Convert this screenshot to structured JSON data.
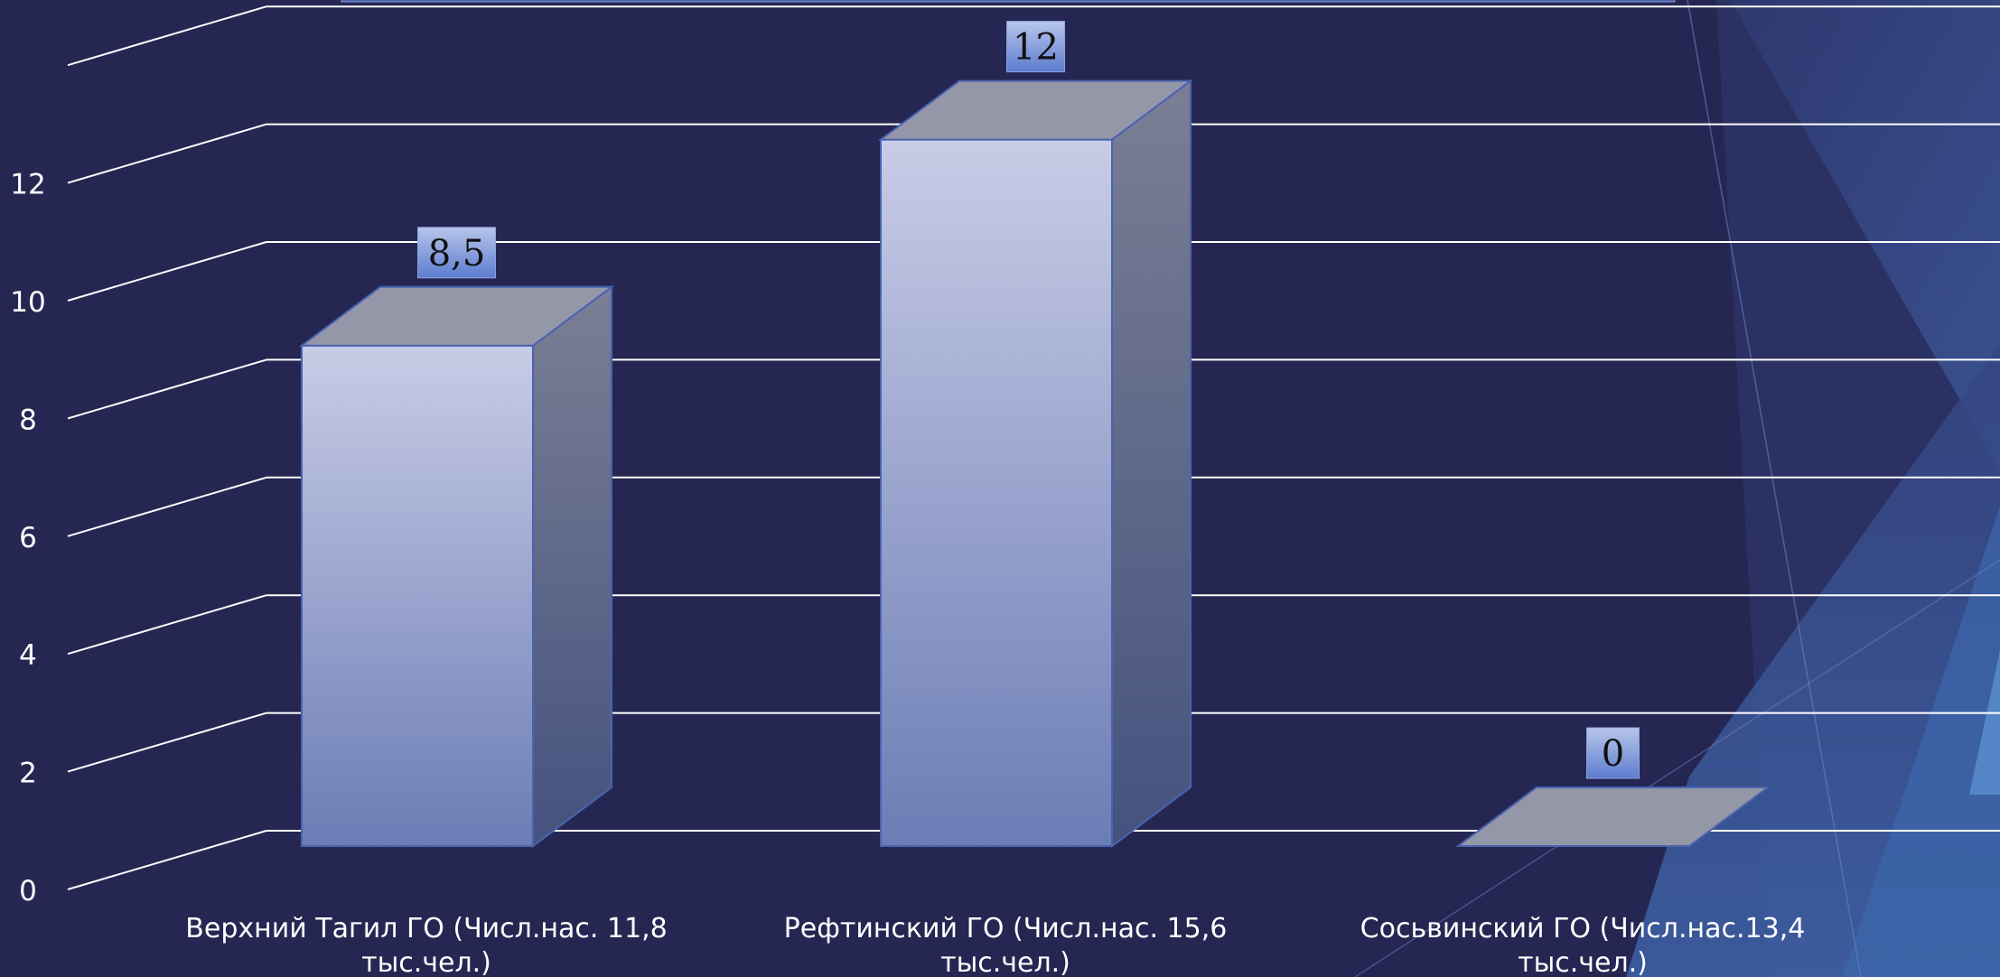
{
  "chart_data": {
    "type": "bar",
    "categories": [
      "Верхний Тагил ГО (Числ.нас. 11,8 тыс.чел.)",
      "Рефтинский ГО (Числ.нас. 15,6 тыс.чел.)",
      "Сосьвинский ГО (Числ.нас.13,4 тыс.чел.)"
    ],
    "category_lines": [
      [
        "Верхний Тагил ГО (Числ.нас. 11,8",
        "тыс.чел.)"
      ],
      [
        "Рефтинский ГО (Числ.нас. 15,6",
        "тыс.чел.)"
      ],
      [
        "Сосьвинский ГО (Числ.нас.13,4",
        "тыс.чел.)"
      ]
    ],
    "values": [
      8.5,
      12,
      0
    ],
    "data_labels": [
      "8,5",
      "12",
      "0"
    ],
    "yticks": [
      "0",
      "2",
      "4",
      "6",
      "8",
      "10",
      "12"
    ],
    "ylim": [
      0,
      14
    ],
    "grid": true,
    "style": "3d-columns",
    "colors": {
      "background": "#252752",
      "bar_front_top": "#c8cce6",
      "bar_front_bottom": "#6b7db5",
      "bar_side_top": "#7a7f95",
      "bar_side_bottom": "#44527e",
      "bar_top": "#9497a8",
      "grid": "#ffffff",
      "label_box_top": "#b7c6ea",
      "label_box_bottom": "#5d7ccf",
      "text": "#ffffff"
    }
  }
}
